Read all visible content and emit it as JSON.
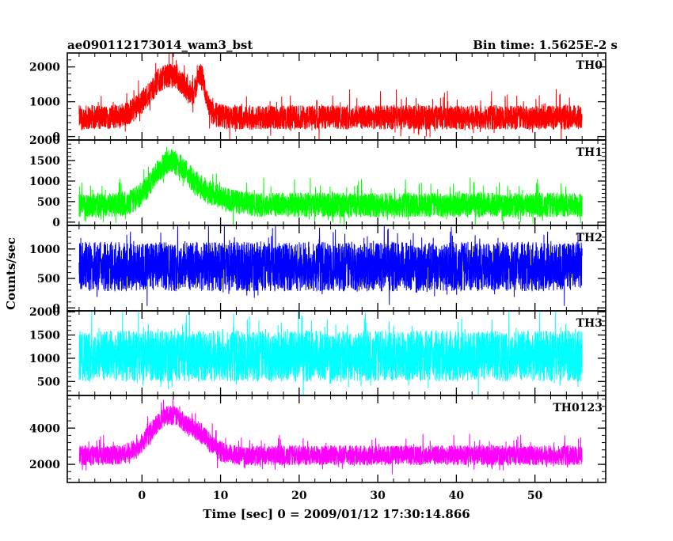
{
  "title_left": "ae090112173014_wam3_bst",
  "title_right": "Bin time: 1.5625E-2 s",
  "ylabel": "Counts/sec",
  "xlabel": "Time [sec] 0 = 2009/01/12 17:30:14.866",
  "chart_data": {
    "type": "line",
    "x_range": [
      -8,
      56
    ],
    "xlim": [
      -9.5,
      59
    ],
    "x_ticks": [
      0,
      10,
      20,
      30,
      40,
      50
    ],
    "x_tick_labels": [
      "0",
      "10",
      "20",
      "30",
      "40",
      "50"
    ],
    "grid": false,
    "series": [
      {
        "name": "TH0",
        "color": "#ff0000",
        "ylim": [
          -100,
          2400
        ],
        "y_ticks": [
          0,
          1000,
          2000
        ],
        "y_tick_labels": [
          "0",
          "1000",
          "2000"
        ],
        "baseline": 550,
        "noise": 350,
        "spike": 500,
        "peaks": [
          {
            "center": 3.5,
            "width": 2.5,
            "height": 1200
          },
          {
            "center": 7.5,
            "width": 0.5,
            "height": 900
          }
        ]
      },
      {
        "name": "TH1",
        "color": "#00ff00",
        "ylim": [
          -80,
          2000
        ],
        "y_ticks": [
          0,
          500,
          1000,
          1500,
          2000
        ],
        "y_tick_labels": [
          "0",
          "500",
          "1000",
          "1500",
          "2000"
        ],
        "baseline": 420,
        "noise": 300,
        "spike": 400,
        "peaks": [
          {
            "center": 3.5,
            "width": 2.2,
            "height": 1000
          },
          {
            "center": 8,
            "width": 2.5,
            "height": 250
          }
        ]
      },
      {
        "name": "TH2",
        "color": "#0000ff",
        "ylim": [
          -50,
          1400
        ],
        "y_ticks": [
          0,
          500,
          1000
        ],
        "y_tick_labels": [
          "0",
          "500",
          "1000"
        ],
        "baseline": 700,
        "noise": 420,
        "spike": 350,
        "peaks": []
      },
      {
        "name": "TH3",
        "color": "#00ffff",
        "ylim": [
          200,
          2020
        ],
        "y_ticks": [
          500,
          1000,
          1500,
          2000
        ],
        "y_tick_labels": [
          "500",
          "1000",
          "1500",
          "2000"
        ],
        "baseline": 1050,
        "noise": 550,
        "spike": 500,
        "peaks": []
      },
      {
        "name": "TH0123",
        "color": "#ff00ff",
        "ylim": [
          1000,
          5800
        ],
        "y_ticks": [
          2000,
          4000
        ],
        "y_tick_labels": [
          "2000",
          "4000"
        ],
        "baseline": 2500,
        "noise": 550,
        "spike": 700,
        "peaks": [
          {
            "center": 3.5,
            "width": 2.3,
            "height": 2200
          },
          {
            "center": 7.5,
            "width": 1.5,
            "height": 700
          }
        ]
      }
    ]
  }
}
